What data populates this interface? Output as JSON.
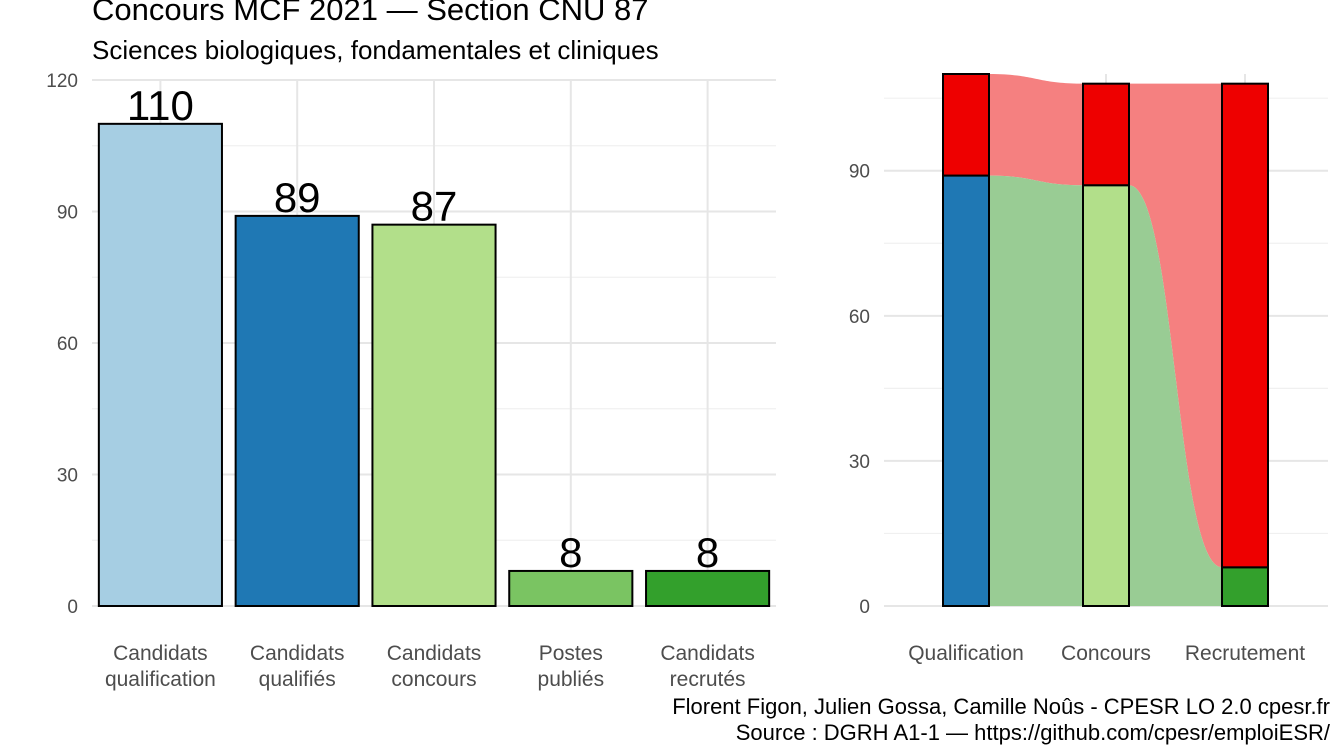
{
  "header": {
    "title": "Concours MCF  2021  —  Section CNU 87",
    "subtitle": "Sciences biologiques, fondamentales et cliniques"
  },
  "footer": {
    "line1": "Florent Figon, Julien Gossa, Camille Noûs - CPESR LO 2.0 cpesr.fr",
    "line2": "Source : DGRH A1-1 — https://github.com/cpesr/emploiESR/"
  },
  "chart_data": [
    {
      "type": "bar",
      "categories": [
        [
          "Candidats",
          "qualification"
        ],
        [
          "Candidats",
          "qualifiés"
        ],
        [
          "Candidats",
          "concours"
        ],
        [
          "Postes",
          "publiés"
        ],
        [
          "Candidats",
          "recrutés"
        ]
      ],
      "values": [
        110,
        89,
        87,
        8,
        8
      ],
      "data_labels": [
        "110",
        "89",
        "87",
        "8",
        "8"
      ],
      "colors": [
        "#a6cee3",
        "#1f78b4",
        "#b2df8a",
        "#7ac462",
        "#33a02c"
      ],
      "ylim": [
        0,
        120
      ],
      "yticks": [
        0,
        30,
        60,
        90,
        120
      ],
      "grid": true
    },
    {
      "type": "area",
      "subtype": "alluvial",
      "stages": [
        "Qualification",
        "Concours",
        "Recrutement"
      ],
      "stacks": [
        [
          {
            "value": 89,
            "color": "#1f78b4"
          },
          {
            "value": 21,
            "color": "#ee0000"
          }
        ],
        [
          {
            "value": 87,
            "color": "#b2df8a"
          },
          {
            "value": 21,
            "color": "#ee0000"
          }
        ],
        [
          {
            "value": 8,
            "color": "#33a02c"
          },
          {
            "value": 100,
            "color": "#ee0000"
          }
        ]
      ],
      "flow_colors": {
        "success": "#99cc94",
        "rejected": "#f58080"
      },
      "ylim": [
        0,
        110
      ],
      "yticks": [
        0,
        30,
        60,
        90
      ],
      "grid": true
    }
  ]
}
